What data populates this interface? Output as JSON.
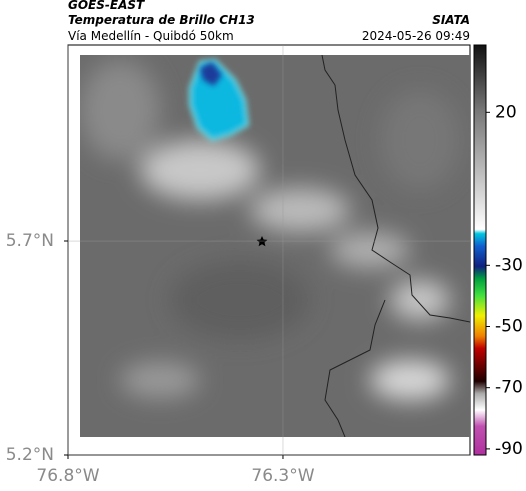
{
  "header": {
    "title": "GOES-EAST",
    "subtitle": "Temperatura de Brillo CH13",
    "route": "Vía Medellín - Quibdó 50km",
    "source": "SIATA",
    "timestamp": "2024-05-26 09:49"
  },
  "map": {
    "xlim": [
      -76.8,
      -75.865
    ],
    "ylim": [
      5.2,
      6.158
    ],
    "xticks": [
      {
        "value": -76.8,
        "label": "76.8°W"
      },
      {
        "value": -76.3,
        "label": "76.3°W"
      }
    ],
    "yticks": [
      {
        "value": 5.7,
        "label": "5.7°N"
      },
      {
        "value": 5.2,
        "label": "5.2°N"
      }
    ],
    "grid": true
  },
  "colorbar": {
    "lim": [
      -92,
      42
    ],
    "ticks": [
      20,
      -30,
      -50,
      -70,
      -90
    ]
  }
}
